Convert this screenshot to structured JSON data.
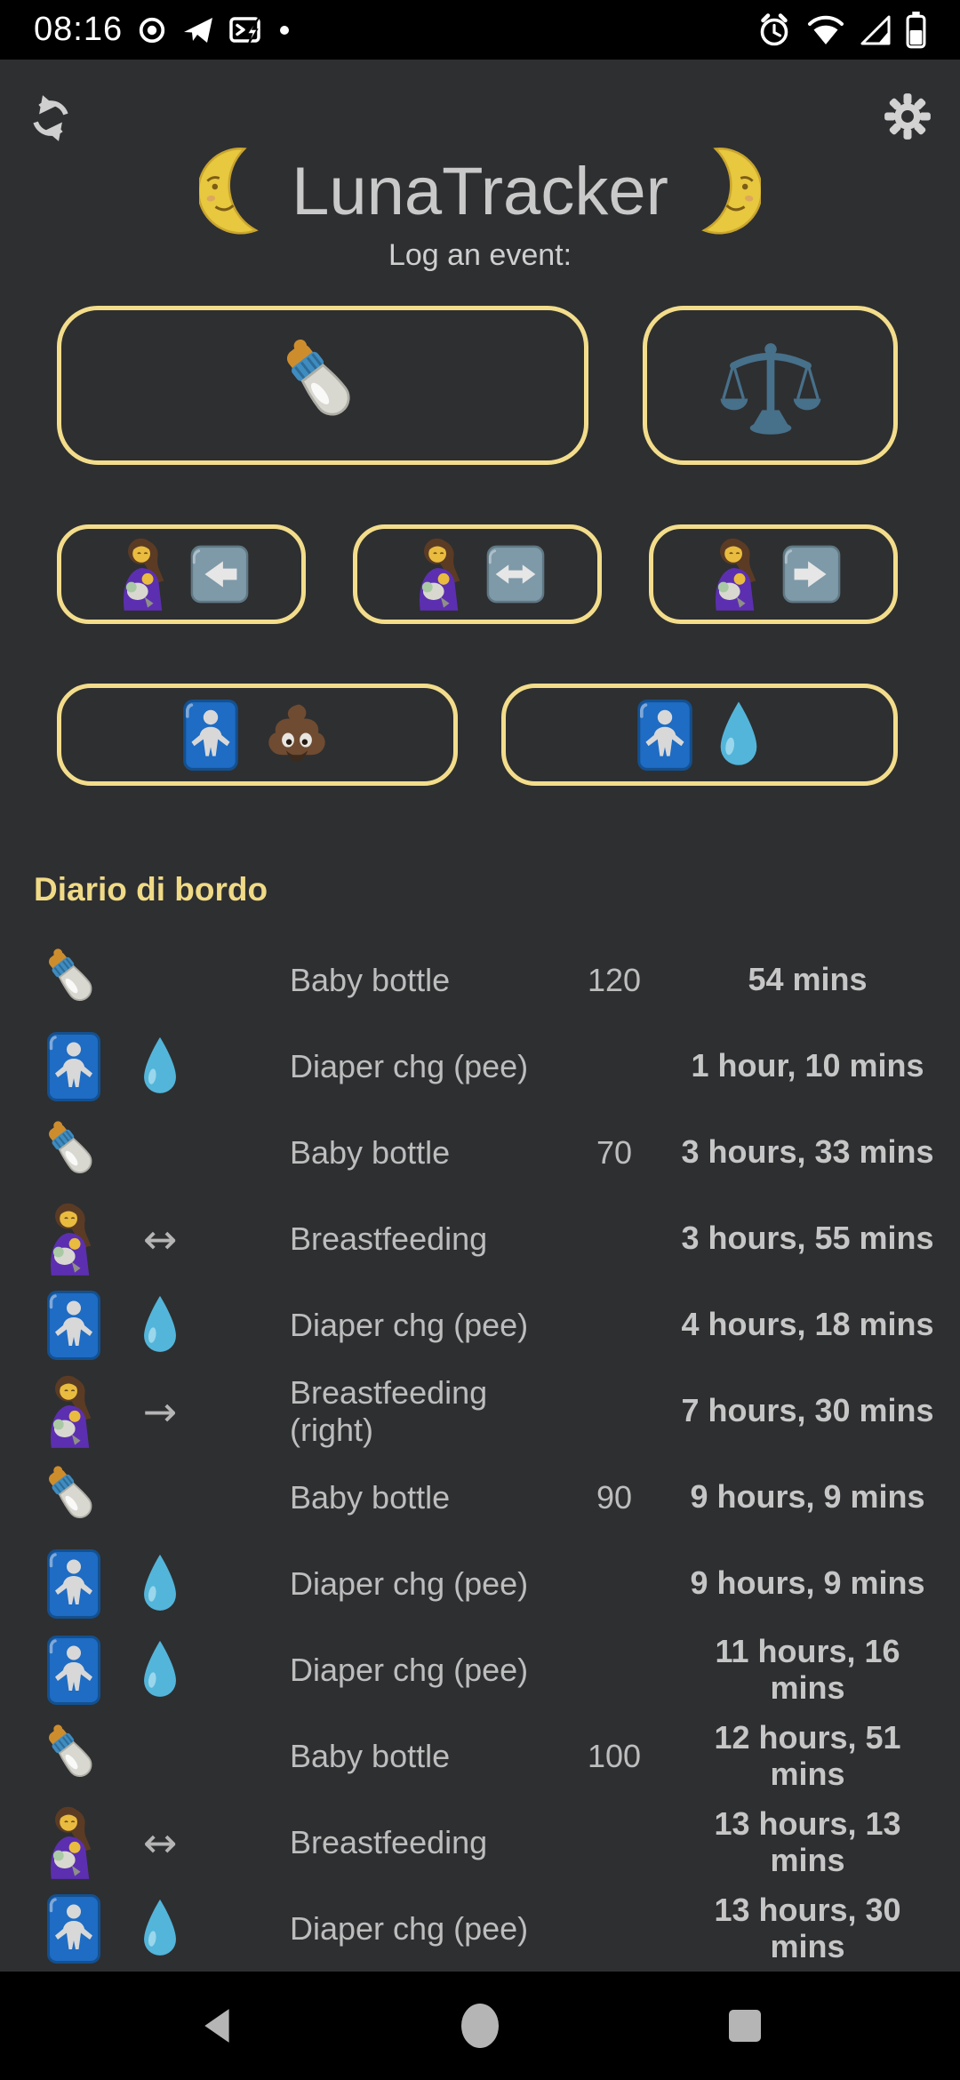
{
  "colors": {
    "background": "#2e2f31",
    "bar_black": "#000000",
    "accent_yellow": "#f3dd8b",
    "heading_yellow": "#f0da86",
    "title_gray": "#c9c9c9",
    "list_text_gray": "#bdbdbd",
    "elapsed_gray": "#c6c6c6",
    "nav_icon_gray": "#b5b5b5",
    "baby_sign_blue": "#1e6cc4",
    "droplet_blue": "#53b5da"
  },
  "status_bar": {
    "time": "08:16",
    "left_icons": [
      "record-icon",
      "telegram-icon",
      "message-bolt-icon",
      "notification-dot-icon"
    ],
    "right_icons": [
      "alarm-icon",
      "wifi-icon",
      "signal-icon",
      "battery-icon"
    ]
  },
  "header": {
    "refresh_icon": "refresh-icon",
    "settings_icon": "gear-icon",
    "title": "LunaTracker",
    "title_moon_left": "moon-face-left-icon",
    "title_moon_right": "moon-face-right-icon",
    "subtitle": "Log an event:"
  },
  "event_buttons": {
    "row1": [
      {
        "name": "log-baby-bottle-button",
        "icons": [
          "baby-bottle-icon"
        ]
      },
      {
        "name": "log-weighing-button",
        "icons": [
          "balance-scale-icon"
        ]
      }
    ],
    "row2": [
      {
        "name": "log-breastfeeding-left-button",
        "icons": [
          "breastfeeding-icon",
          "arrow-left-square-icon"
        ]
      },
      {
        "name": "log-breastfeeding-both-button",
        "icons": [
          "breastfeeding-icon",
          "arrow-both-square-icon"
        ]
      },
      {
        "name": "log-breastfeeding-right-button",
        "icons": [
          "breastfeeding-icon",
          "arrow-right-square-icon"
        ]
      }
    ],
    "row3": [
      {
        "name": "log-diaper-poop-button",
        "icons": [
          "baby-symbol-icon",
          "poop-icon"
        ]
      },
      {
        "name": "log-diaper-pee-button",
        "icons": [
          "baby-symbol-icon",
          "droplet-icon"
        ]
      }
    ]
  },
  "log": {
    "heading": "Diario di bordo",
    "rows": [
      {
        "icon1": "baby-bottle-icon",
        "icon2": "",
        "arrow": "",
        "label": "Baby bottle",
        "quantity": "120",
        "elapsed": "54 mins"
      },
      {
        "icon1": "baby-symbol-icon",
        "icon2": "droplet-icon",
        "arrow": "",
        "label": "Diaper chg (pee)",
        "quantity": "",
        "elapsed": "1 hour, 10 mins"
      },
      {
        "icon1": "baby-bottle-icon",
        "icon2": "",
        "arrow": "",
        "label": "Baby bottle",
        "quantity": "70",
        "elapsed": "3 hours, 33 mins"
      },
      {
        "icon1": "breastfeeding-icon",
        "icon2": "",
        "arrow": "↔",
        "label": "Breastfeeding",
        "quantity": "",
        "elapsed": "3 hours, 55 mins"
      },
      {
        "icon1": "baby-symbol-icon",
        "icon2": "droplet-icon",
        "arrow": "",
        "label": "Diaper chg (pee)",
        "quantity": "",
        "elapsed": "4 hours, 18 mins"
      },
      {
        "icon1": "breastfeeding-icon",
        "icon2": "",
        "arrow": "→",
        "label": "Breastfeeding (right)",
        "quantity": "",
        "elapsed": "7 hours, 30 mins"
      },
      {
        "icon1": "baby-bottle-icon",
        "icon2": "",
        "arrow": "",
        "label": "Baby bottle",
        "quantity": "90",
        "elapsed": "9 hours, 9 mins"
      },
      {
        "icon1": "baby-symbol-icon",
        "icon2": "droplet-icon",
        "arrow": "",
        "label": "Diaper chg (pee)",
        "quantity": "",
        "elapsed": "9 hours, 9 mins"
      },
      {
        "icon1": "baby-symbol-icon",
        "icon2": "droplet-icon",
        "arrow": "",
        "label": "Diaper chg (pee)",
        "quantity": "",
        "elapsed": "11 hours, 16 mins"
      },
      {
        "icon1": "baby-bottle-icon",
        "icon2": "",
        "arrow": "",
        "label": "Baby bottle",
        "quantity": "100",
        "elapsed": "12 hours, 51 mins"
      },
      {
        "icon1": "breastfeeding-icon",
        "icon2": "",
        "arrow": "↔",
        "label": "Breastfeeding",
        "quantity": "",
        "elapsed": "13 hours, 13 mins"
      },
      {
        "icon1": "baby-symbol-icon",
        "icon2": "droplet-icon",
        "arrow": "",
        "label": "Diaper chg (pee)",
        "quantity": "",
        "elapsed": "13 hours, 30 mins"
      }
    ]
  },
  "nav_bar": {
    "icons": [
      "nav-back-icon",
      "nav-home-icon",
      "nav-recents-icon"
    ]
  }
}
